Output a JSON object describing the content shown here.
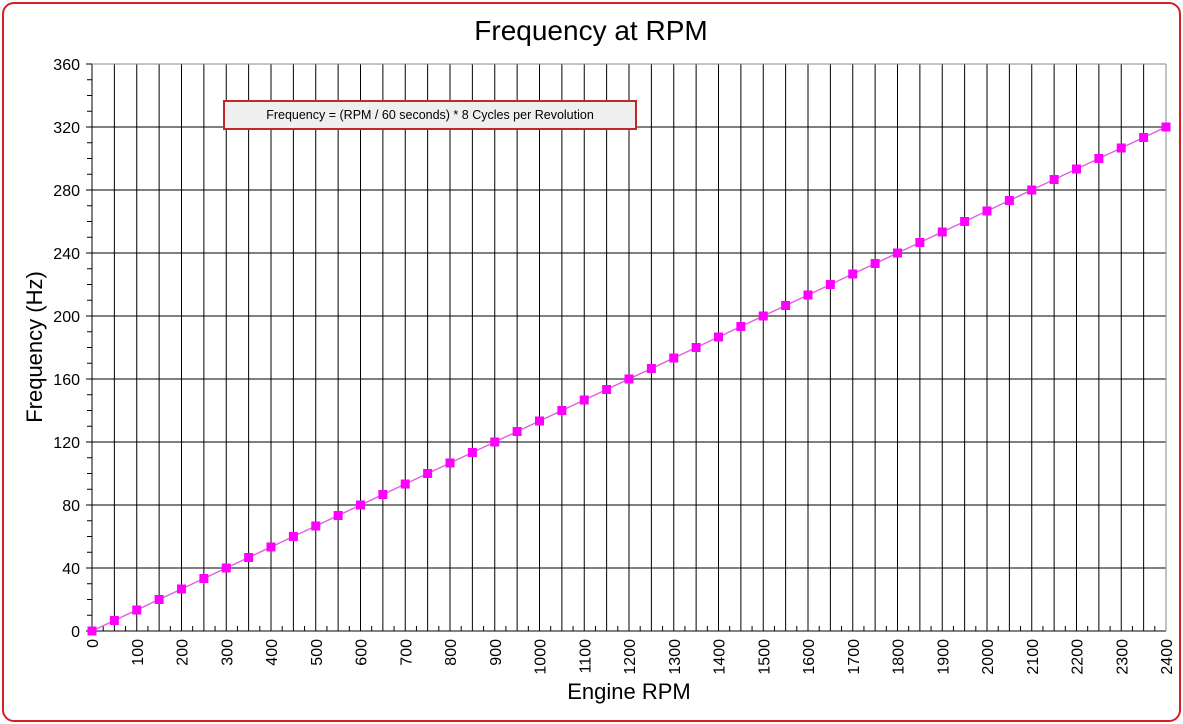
{
  "chart_data": {
    "type": "line",
    "title": "Frequency at RPM",
    "xlabel": "Engine RPM",
    "ylabel": "Frequency (Hz)",
    "xlim": [
      0,
      2400
    ],
    "ylim": [
      0,
      360
    ],
    "x_ticks": [
      0,
      100,
      200,
      300,
      400,
      500,
      600,
      700,
      800,
      900,
      1000,
      1100,
      1200,
      1300,
      1400,
      1500,
      1600,
      1700,
      1800,
      1900,
      2000,
      2100,
      2200,
      2300,
      2400
    ],
    "y_ticks": [
      0,
      40,
      80,
      120,
      160,
      200,
      240,
      280,
      320,
      360
    ],
    "x_grid_step": 50,
    "x_minor_step": 25,
    "y_minor_step": 10,
    "grid": true,
    "annotation": "Frequency = (RPM / 60 seconds) * 8 Cycles per Revolution",
    "series": [
      {
        "name": "Frequency",
        "color": "#ff00ff",
        "x": [
          0,
          50,
          100,
          150,
          200,
          250,
          300,
          350,
          400,
          450,
          500,
          550,
          600,
          650,
          700,
          750,
          800,
          850,
          900,
          950,
          1000,
          1050,
          1100,
          1150,
          1200,
          1250,
          1300,
          1350,
          1400,
          1450,
          1500,
          1550,
          1600,
          1650,
          1700,
          1750,
          1800,
          1850,
          1900,
          1950,
          2000,
          2050,
          2100,
          2150,
          2200,
          2250,
          2300,
          2350,
          2400
        ],
        "y": [
          0,
          6.67,
          13.33,
          20,
          26.67,
          33.33,
          40,
          46.67,
          53.33,
          60,
          66.67,
          73.33,
          80,
          86.67,
          93.33,
          100,
          106.67,
          113.33,
          120,
          126.67,
          133.33,
          140,
          146.67,
          153.33,
          160,
          166.67,
          173.33,
          180,
          186.67,
          193.33,
          200,
          206.67,
          213.33,
          220,
          226.67,
          233.33,
          240,
          246.67,
          253.33,
          260,
          266.67,
          273.33,
          280,
          286.67,
          293.33,
          300,
          306.67,
          313.33,
          320
        ]
      }
    ]
  }
}
